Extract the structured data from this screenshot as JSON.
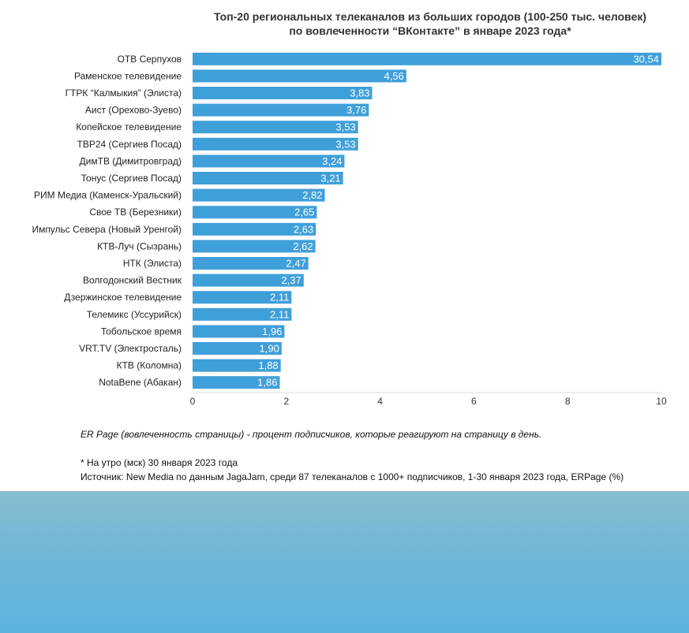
{
  "chart_data": {
    "type": "bar",
    "orientation": "horizontal",
    "title": "Топ-20 региональных телеканалов из больших городов (100-250 тыс. человек)",
    "subtitle": "по вовлеченности “ВКонтакте” в январе 2023 года*",
    "categories": [
      "ОТВ Серпухов",
      "Раменское телевидение",
      "ГТРК “Калмыкия” (Элиста)",
      "Аист (Орехово-Зуево)",
      "Копейское телевидение",
      "ТВР24 (Сергиев Посад)",
      "ДимТВ (Димитровград)",
      "Тонус (Сергиев Посад)",
      "РИМ Медиа (Каменск-Уральский)",
      "Свое ТВ (Березники)",
      "Импульс Севера (Новый Уренгой)",
      "КТВ-Луч (Сызрань)",
      "НТК (Элиста)",
      "Волгодонский Вестник",
      "Дзержинское телевидение",
      "Телемикс (Уссурийск)",
      "Тобольское время",
      "VRT.TV (Электросталь)",
      "КТВ (Коломна)",
      "NotaBene (Абакан)"
    ],
    "values": [
      30.54,
      4.56,
      3.83,
      3.76,
      3.53,
      3.53,
      3.24,
      3.21,
      2.82,
      2.65,
      2.63,
      2.62,
      2.47,
      2.37,
      2.11,
      2.11,
      1.96,
      1.9,
      1.88,
      1.86
    ],
    "value_labels": [
      "30,54",
      "4,56",
      "3,83",
      "3,76",
      "3,53",
      "3,53",
      "3,24",
      "3,21",
      "2,82",
      "2,65",
      "2,63",
      "2,62",
      "2,47",
      "2,37",
      "2,11",
      "2,11",
      "1,96",
      "1,90",
      "1,88",
      "1,86"
    ],
    "xlim": [
      0,
      10
    ],
    "xticks": [
      0,
      2,
      4,
      6,
      8,
      10
    ],
    "grid": false,
    "legend": "none",
    "bar_color": "#3f9fd9"
  },
  "notes": {
    "definition": "ER Page (вовлеченность страницы) - процент подписчиков, которые реагируют на страницу в день.",
    "footnote": "* На утро (мск) 30 января 2023 года",
    "source": "Источник: New Media по данным JagaJam, среди 87 телеканалов с 1000+ подписчиков, 1-30 января 2023 года, ERPage (%)"
  }
}
